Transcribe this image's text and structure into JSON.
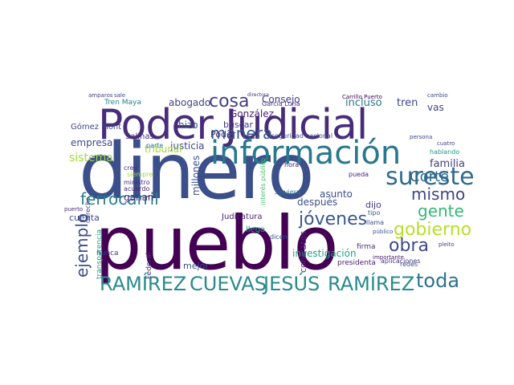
{
  "words": [
    {
      "text": "dinero",
      "color": "#3b4f8a"
    },
    {
      "text": "pueblo",
      "color": "#440154"
    },
    {
      "text": "Poder Judicial",
      "color": "#472c7a"
    },
    {
      "text": "información",
      "color": "#2a788e"
    },
    {
      "text": "RAMÍREZ",
      "color": "#2a8a8c"
    },
    {
      "text": "CUEVAS",
      "color": "#2a8a8c"
    },
    {
      "text": "JESÚS",
      "color": "#2a8a8c"
    },
    {
      "text": "RAMÍREZ",
      "color": "#2a8a8c"
    },
    {
      "text": "sureste",
      "color": "#2f6c8e"
    },
    {
      "text": "ferrocarril",
      "color": "#2a7f8e"
    },
    {
      "text": "gobierno",
      "color": "#b8de29"
    },
    {
      "text": "jóvenes",
      "color": "#39568c"
    },
    {
      "text": "obra",
      "color": "#3e4989"
    },
    {
      "text": "toda",
      "color": "#2c728e"
    },
    {
      "text": "gente",
      "color": "#35b779"
    },
    {
      "text": "ejemplo",
      "color": "#3d4d8a"
    },
    {
      "text": "mismo",
      "color": "#414487"
    },
    {
      "text": "Corte",
      "color": "#31688e"
    },
    {
      "text": "cosa",
      "color": "#423f85"
    },
    {
      "text": "manera",
      "color": "#38598c"
    },
    {
      "text": "Consejo",
      "color": "#443a83"
    },
    {
      "text": "incluso",
      "color": "#2b758e"
    },
    {
      "text": "tren",
      "color": "#3f4788"
    },
    {
      "text": "vas",
      "color": "#404387"
    },
    {
      "text": "familia",
      "color": "#433e85"
    },
    {
      "text": "sistema",
      "color": "#a0da39"
    },
    {
      "text": "empresa",
      "color": "#3e4a89"
    },
    {
      "text": "abogado",
      "color": "#424186"
    },
    {
      "text": "justicia",
      "color": "#3f4889"
    },
    {
      "text": "González",
      "color": "#482173"
    },
    {
      "text": "hizo",
      "color": "#3a538b"
    },
    {
      "text": "buscar",
      "color": "#433d84"
    },
    {
      "text": "Poder",
      "color": "#453581"
    },
    {
      "text": "Gómez Mont",
      "color": "#404588"
    },
    {
      "text": "Tren Maya",
      "color": "#26828e"
    },
    {
      "text": "Salinas",
      "color": "#46327e"
    },
    {
      "text": "tribunal",
      "color": "#a2da37"
    },
    {
      "text": "millones",
      "color": "#3b518b"
    },
    {
      "text": "ganan",
      "color": "#46307e"
    },
    {
      "text": "después",
      "color": "#3c508b"
    },
    {
      "text": "asunto",
      "color": "#3d4e8a"
    },
    {
      "text": "dijo",
      "color": "#453882"
    },
    {
      "text": "investigación",
      "color": "#21a585"
    },
    {
      "text": "contratos",
      "color": "#472d7b"
    },
    {
      "text": "cuenta",
      "color": "#3e4c8a"
    },
    {
      "text": "llega",
      "color": "#1f9e89"
    },
    {
      "text": "mejor",
      "color": "#3b528b"
    },
    {
      "text": "presidenta",
      "color": "#481c6e"
    },
    {
      "text": "firma",
      "color": "#472f7d"
    },
    {
      "text": "nunca",
      "color": "#453781"
    },
    {
      "text": "transparencia",
      "color": "#1fa088"
    },
    {
      "text": "Federal",
      "color": "#46337f"
    },
    {
      "text": "Judicatura",
      "color": "#482475"
    },
    {
      "text": "derecho",
      "color": "#3f4788"
    },
    {
      "text": "ministro",
      "color": "#472a7a"
    },
    {
      "text": "creo",
      "color": "#463480"
    },
    {
      "text": "siempre",
      "color": "#9fda3a"
    },
    {
      "text": "acuerdo",
      "color": "#482878"
    },
    {
      "text": "puerto",
      "color": "#472c7a"
    },
    {
      "text": "seguridad nacional",
      "color": "#3b528b"
    },
    {
      "text": "interés público",
      "color": "#4ac16d"
    },
    {
      "text": "aplicaciones",
      "color": "#453882"
    },
    {
      "text": "redes",
      "color": "#3c4f8a"
    },
    {
      "text": "tipo",
      "color": "#39568c"
    },
    {
      "text": "llama",
      "color": "#3b528b"
    },
    {
      "text": "siquiera",
      "color": "#2a788e"
    },
    {
      "text": "pueda",
      "color": "#482677"
    },
    {
      "text": "hora",
      "color": "#471365"
    },
    {
      "text": "parte",
      "color": "#2e6e8e"
    },
    {
      "text": "García Luna",
      "color": "#46337f"
    },
    {
      "text": "Carrillo Puerto",
      "color": "#440154"
    },
    {
      "text": "persona",
      "color": "#404588"
    },
    {
      "text": "cambio",
      "color": "#3e4989"
    },
    {
      "text": "hablando",
      "color": "#1f968b"
    },
    {
      "text": "cuatro",
      "color": "#404387"
    },
    {
      "text": "dicen",
      "color": "#3b528b"
    },
    {
      "text": "sale",
      "color": "#3f4889"
    },
    {
      "text": "amparos",
      "color": "#423f85"
    },
    {
      "text": "directora",
      "color": "#453781"
    },
    {
      "text": "importante",
      "color": "#481a6c"
    },
    {
      "text": "público",
      "color": "#3b528b"
    },
    {
      "text": "pleito",
      "color": "#404387"
    }
  ]
}
